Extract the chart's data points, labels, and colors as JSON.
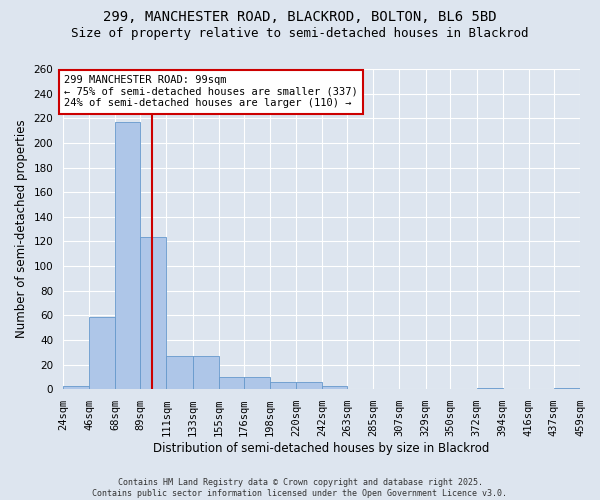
{
  "title_line1": "299, MANCHESTER ROAD, BLACKROD, BOLTON, BL6 5BD",
  "title_line2": "Size of property relative to semi-detached houses in Blackrod",
  "xlabel": "Distribution of semi-detached houses by size in Blackrod",
  "ylabel": "Number of semi-detached properties",
  "bin_edges": [
    24,
    46,
    68,
    89,
    111,
    133,
    155,
    176,
    198,
    220,
    242,
    263,
    285,
    307,
    329,
    350,
    372,
    394,
    416,
    437,
    459
  ],
  "bin_labels": [
    "24sqm",
    "46sqm",
    "68sqm",
    "89sqm",
    "111sqm",
    "133sqm",
    "155sqm",
    "176sqm",
    "198sqm",
    "220sqm",
    "242sqm",
    "263sqm",
    "285sqm",
    "307sqm",
    "329sqm",
    "350sqm",
    "372sqm",
    "394sqm",
    "416sqm",
    "437sqm",
    "459sqm"
  ],
  "counts": [
    3,
    59,
    217,
    124,
    27,
    27,
    10,
    10,
    6,
    6,
    3,
    0,
    0,
    0,
    0,
    0,
    1,
    0,
    0,
    1
  ],
  "bar_color": "#aec6e8",
  "bar_edge_color": "#6699cc",
  "property_size": 99,
  "vline_color": "#cc0000",
  "annotation_text": "299 MANCHESTER ROAD: 99sqm\n← 75% of semi-detached houses are smaller (337)\n24% of semi-detached houses are larger (110) →",
  "annotation_box_color": "#ffffff",
  "annotation_box_edge": "#cc0000",
  "ylim": [
    0,
    260
  ],
  "yticks": [
    0,
    20,
    40,
    60,
    80,
    100,
    120,
    140,
    160,
    180,
    200,
    220,
    240,
    260
  ],
  "background_color": "#dde5ef",
  "grid_color": "#ffffff",
  "footer_text": "Contains HM Land Registry data © Crown copyright and database right 2025.\nContains public sector information licensed under the Open Government Licence v3.0.",
  "title_fontsize": 10,
  "subtitle_fontsize": 9,
  "axis_label_fontsize": 8.5,
  "tick_fontsize": 7.5,
  "annot_fontsize": 7.5,
  "footer_fontsize": 6
}
